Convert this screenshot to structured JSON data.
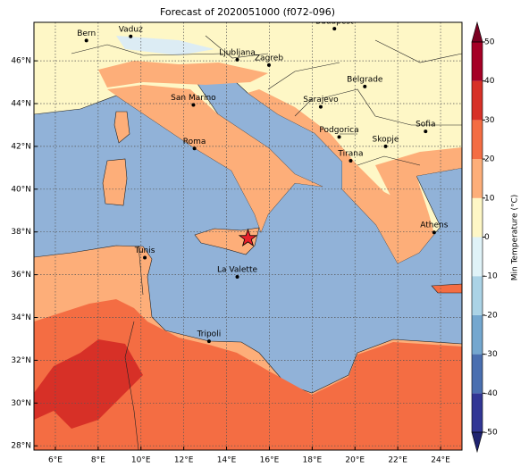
{
  "map": {
    "title": "Forecast of 2020051000 (f072-096)",
    "lon_range": [
      5,
      25
    ],
    "lat_range": [
      27.8,
      47.8
    ],
    "lon_ticks": [
      {
        "value": 6,
        "label": "6°E"
      },
      {
        "value": 8,
        "label": "8°E"
      },
      {
        "value": 10,
        "label": "10°E"
      },
      {
        "value": 12,
        "label": "12°E"
      },
      {
        "value": 14,
        "label": "14°E"
      },
      {
        "value": 16,
        "label": "16°E"
      },
      {
        "value": 18,
        "label": "18°E"
      },
      {
        "value": 20,
        "label": "20°E"
      },
      {
        "value": 22,
        "label": "22°E"
      },
      {
        "value": 24,
        "label": "24°E"
      }
    ],
    "lat_ticks": [
      {
        "value": 28,
        "label": "28°N"
      },
      {
        "value": 30,
        "label": "30°N"
      },
      {
        "value": 32,
        "label": "32°N"
      },
      {
        "value": 34,
        "label": "34°N"
      },
      {
        "value": 36,
        "label": "36°N"
      },
      {
        "value": 38,
        "label": "38°N"
      },
      {
        "value": 40,
        "label": "40°N"
      },
      {
        "value": 42,
        "label": "42°N"
      },
      {
        "value": 44,
        "label": "44°N"
      },
      {
        "value": 46,
        "label": "46°N"
      }
    ],
    "grid": true,
    "cities": [
      {
        "name": "Bern",
        "lon": 7.45,
        "lat": 46.95
      },
      {
        "name": "Vaduz",
        "lon": 9.52,
        "lat": 47.14
      },
      {
        "name": "Budapest",
        "lon": 19.04,
        "lat": 47.5
      },
      {
        "name": "Ljubljana",
        "lon": 14.5,
        "lat": 46.05
      },
      {
        "name": "Zagreb",
        "lon": 15.98,
        "lat": 45.8
      },
      {
        "name": "Belgrade",
        "lon": 20.46,
        "lat": 44.8
      },
      {
        "name": "San Marino",
        "lon": 12.45,
        "lat": 43.94
      },
      {
        "name": "Sarajevo",
        "lon": 18.4,
        "lat": 43.85
      },
      {
        "name": "Sofia",
        "lon": 23.3,
        "lat": 42.7
      },
      {
        "name": "Podgorica",
        "lon": 19.26,
        "lat": 42.44
      },
      {
        "name": "Skopje",
        "lon": 21.43,
        "lat": 42.0
      },
      {
        "name": "Roma",
        "lon": 12.5,
        "lat": 41.9
      },
      {
        "name": "Tirana",
        "lon": 19.8,
        "lat": 41.33
      },
      {
        "name": "Athens",
        "lon": 23.7,
        "lat": 37.98
      },
      {
        "name": "Tunis",
        "lon": 10.18,
        "lat": 36.8
      },
      {
        "name": "La Valette",
        "lon": 14.5,
        "lat": 35.9
      },
      {
        "name": "Tripoli",
        "lon": 13.18,
        "lat": 32.89
      }
    ],
    "star": {
      "lon": 15.0,
      "lat": 37.7,
      "color": "#e8202a"
    }
  },
  "colorbar": {
    "label": "Min Temperature (°C)",
    "ticks": [
      -50,
      -40,
      -30,
      -20,
      -10,
      0,
      10,
      20,
      30,
      40,
      50
    ],
    "colors": [
      "#313695",
      "#4a6fb0",
      "#74a7cf",
      "#abd3e6",
      "#e0f3f8",
      "#fef7c6",
      "#fdae79",
      "#f46d43",
      "#d73027",
      "#a50026"
    ],
    "under_color": "#1f2370",
    "over_color": "#7a0022"
  }
}
